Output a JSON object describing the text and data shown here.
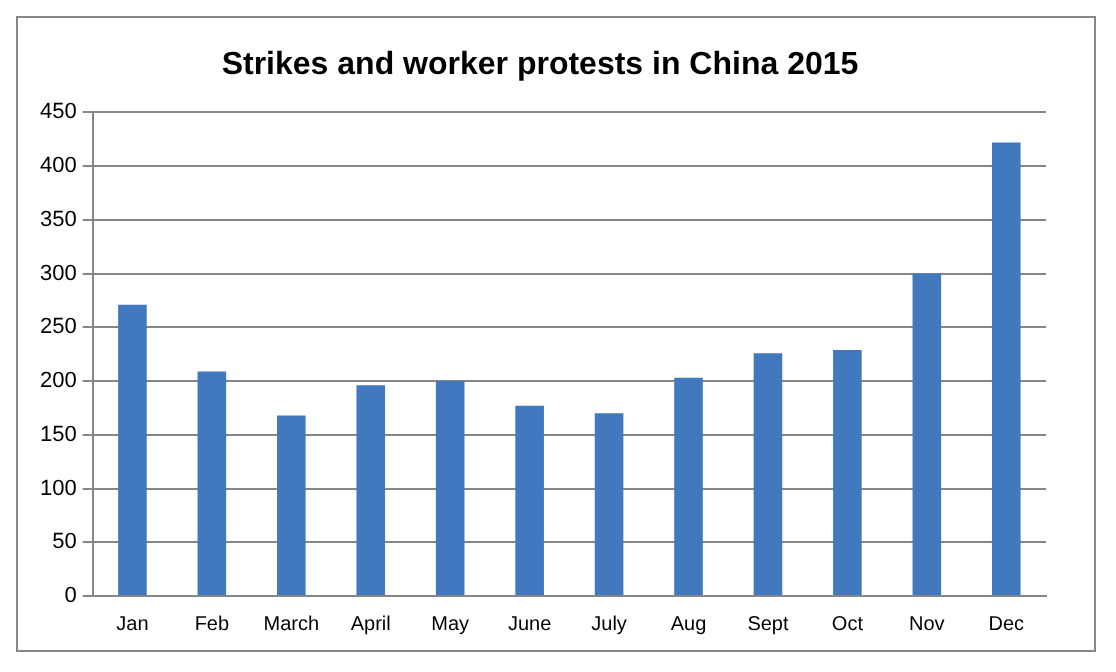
{
  "chart_data": {
    "type": "bar",
    "title": "Strikes and worker protests in China 2015",
    "categories": [
      "Jan",
      "Feb",
      "March",
      "April",
      "May",
      "June",
      "July",
      "Aug",
      "Sept",
      "Oct",
      "Nov",
      "Dec"
    ],
    "values": [
      271,
      209,
      168,
      196,
      200,
      177,
      170,
      203,
      226,
      229,
      300,
      422
    ],
    "color": "#4178be",
    "ylim": [
      0,
      450
    ],
    "yticks": [
      0,
      50,
      100,
      150,
      200,
      250,
      300,
      350,
      400,
      450
    ],
    "grid": "y",
    "legend": false
  }
}
